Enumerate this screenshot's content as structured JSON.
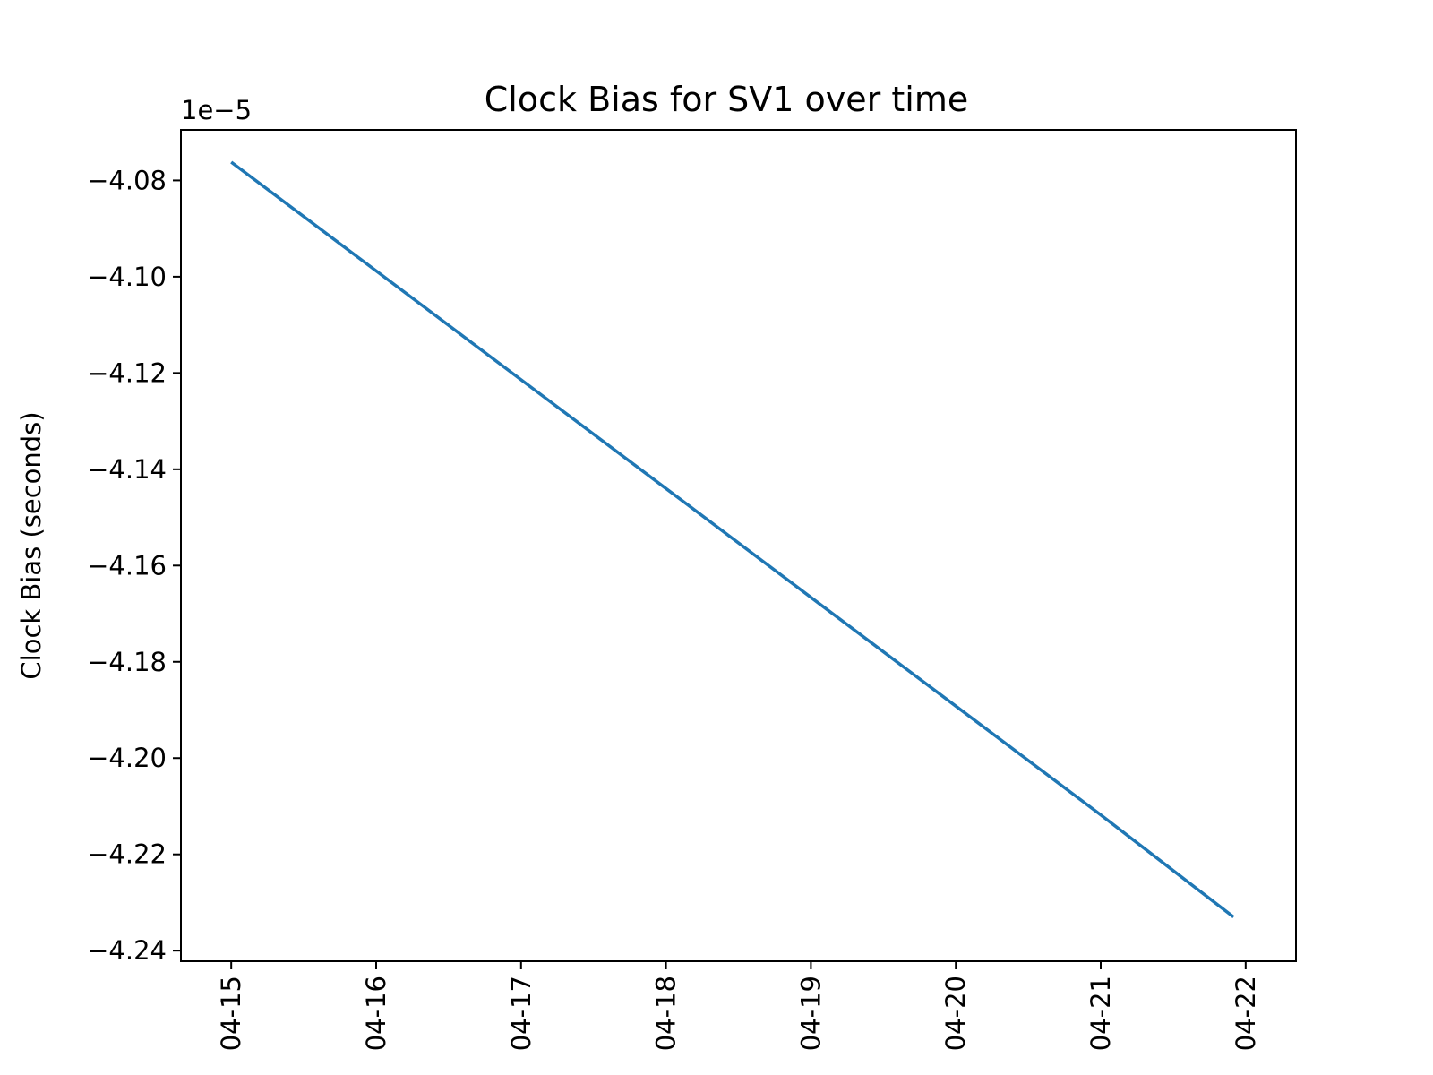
{
  "chart_data": {
    "type": "line",
    "title": "Clock Bias for SV1 over time",
    "xlabel": "",
    "ylabel": "Clock Bias (seconds)",
    "y_offset_label": "1e−5",
    "y_scale": 1e-05,
    "xlim": [
      "04-14 15:40",
      "04-22 08:20"
    ],
    "ylim": [
      -4.2422,
      -4.0695
    ],
    "x_ticks": [
      "04-15",
      "04-16",
      "04-17",
      "04-18",
      "04-19",
      "04-20",
      "04-21",
      "04-22"
    ],
    "y_ticks": [
      "−4.24",
      "−4.22",
      "−4.20",
      "−4.18",
      "−4.16",
      "−4.14",
      "−4.12",
      "−4.10",
      "−4.08"
    ],
    "y_tick_values": [
      -4.24,
      -4.22,
      -4.2,
      -4.18,
      -4.16,
      -4.14,
      -4.12,
      -4.1,
      -4.08
    ],
    "grid": false,
    "series": [
      {
        "color": "#1f77b4",
        "x": [
          "04-15",
          "04-16",
          "04-17",
          "04-18",
          "04-19",
          "04-20",
          "04-21",
          "04-21 22:00"
        ],
        "values": [
          -4.0762,
          -4.0988,
          -4.1214,
          -4.144,
          -4.1666,
          -4.1892,
          -4.2118,
          -4.233
        ]
      }
    ]
  }
}
